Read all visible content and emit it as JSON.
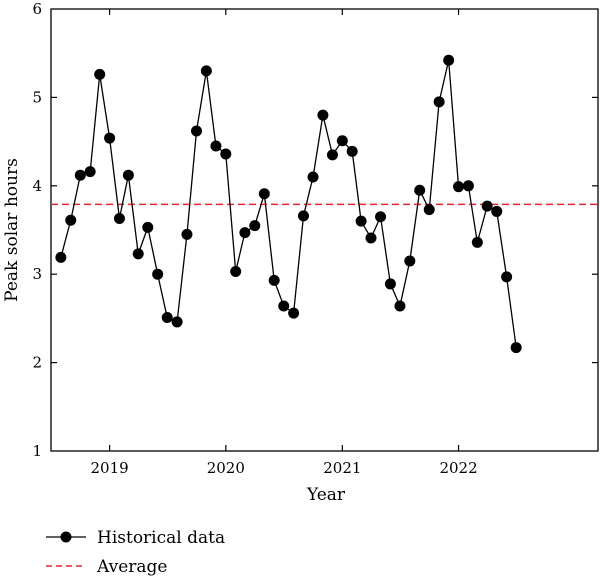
{
  "chart_data": {
    "type": "line",
    "title": "",
    "xlabel": "Year",
    "ylabel": "Peak solar hours",
    "xlim": [
      "2018-07-01",
      "2023-03-15"
    ],
    "ylim": [
      1,
      6
    ],
    "x_ticks": [
      "2019-01-01",
      "2020-01-01",
      "2021-01-01",
      "2022-01-01"
    ],
    "x_tick_labels": [
      "2019",
      "2020",
      "2021",
      "2022"
    ],
    "y_ticks": [
      1,
      2,
      3,
      4,
      5,
      6
    ],
    "grid": false,
    "legend_position": "bottom-left",
    "series": [
      {
        "name": "Historical data",
        "color": "#000000",
        "marker": "circle",
        "x": [
          "2018-08-01",
          "2018-09-01",
          "2018-10-01",
          "2018-11-01",
          "2018-12-01",
          "2019-01-01",
          "2019-02-01",
          "2019-03-01",
          "2019-04-01",
          "2019-05-01",
          "2019-06-01",
          "2019-07-01",
          "2019-08-01",
          "2019-09-01",
          "2019-10-01",
          "2019-11-01",
          "2019-12-01",
          "2020-01-01",
          "2020-02-01",
          "2020-03-01",
          "2020-04-01",
          "2020-05-01",
          "2020-06-01",
          "2020-07-01",
          "2020-08-01",
          "2020-09-01",
          "2020-10-01",
          "2020-11-01",
          "2020-12-01",
          "2021-01-01",
          "2021-02-01",
          "2021-03-01",
          "2021-04-01",
          "2021-05-01",
          "2021-06-01",
          "2021-07-01",
          "2021-08-01",
          "2021-09-01",
          "2021-10-01",
          "2021-11-01",
          "2021-12-01",
          "2022-01-01",
          "2022-02-01",
          "2022-03-01",
          "2022-04-01",
          "2022-05-01",
          "2022-06-01",
          "2022-07-01"
        ],
        "values": [
          3.19,
          3.61,
          4.12,
          4.16,
          5.26,
          4.54,
          3.63,
          4.12,
          3.23,
          3.53,
          3.0,
          2.51,
          2.46,
          3.45,
          4.62,
          5.3,
          4.45,
          4.36,
          3.03,
          3.47,
          3.55,
          3.91,
          2.93,
          2.64,
          2.56,
          3.66,
          4.1,
          4.8,
          4.35,
          4.51,
          4.39,
          3.6,
          3.41,
          3.65,
          2.89,
          2.64,
          3.15,
          3.95,
          3.73,
          4.95,
          5.42,
          3.99,
          4.0,
          3.36,
          3.77,
          3.71,
          2.97,
          2.17
        ]
      },
      {
        "name": "Average",
        "color": "#e8262b",
        "style": "dashed",
        "values": [
          3.79
        ]
      }
    ]
  }
}
